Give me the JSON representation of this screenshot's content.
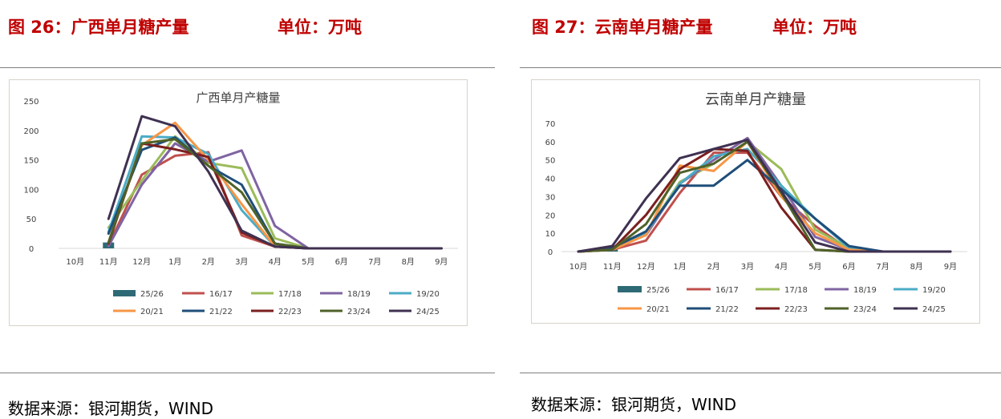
{
  "left": {
    "figure_title": "图 26：广西单月糖产量",
    "unit_label": "单位：万吨",
    "source": "数据来源：银河期货，WIND"
  },
  "right": {
    "figure_title": "图 27：云南单月糖产量",
    "unit_label": "单位：万吨",
    "source": "数据来源：银河期货，WIND"
  },
  "colors": {
    "title_red": "#c00000",
    "s2526": "#2e6a75",
    "s1617": "#c0504d",
    "s1718": "#9bbb59",
    "s1819": "#8064a2",
    "s1920": "#4bacc6",
    "s2021": "#f79646",
    "s2122": "#1f4e79",
    "s2223": "#7b1f1f",
    "s2324": "#4f6228",
    "s2425": "#3f3151"
  },
  "chart_data": [
    {
      "type": "line",
      "title": "广西单月产糖量",
      "categories": [
        "10月",
        "11月",
        "12月",
        "1月",
        "2月",
        "3月",
        "4月",
        "5月",
        "6月",
        "7月",
        "8月",
        "9月"
      ],
      "ylim": [
        0,
        250
      ],
      "yticks": [
        0,
        50,
        100,
        150,
        200,
        250
      ],
      "legend_position": "bottom",
      "series": [
        {
          "name": "25/26",
          "display": "bar",
          "values": [
            null,
            10,
            null,
            null,
            null,
            null,
            null,
            null,
            null,
            null,
            null,
            null
          ]
        },
        {
          "name": "16/17",
          "values": [
            null,
            5,
            125,
            157,
            163,
            22,
            3,
            0,
            0,
            0,
            0,
            0
          ]
        },
        {
          "name": "17/18",
          "values": [
            null,
            35,
            115,
            190,
            145,
            136,
            17,
            0,
            0,
            0,
            0,
            0
          ]
        },
        {
          "name": "18/19",
          "values": [
            null,
            4,
            108,
            178,
            147,
            166,
            38,
            0,
            0,
            0,
            0,
            0
          ]
        },
        {
          "name": "19/20",
          "values": [
            null,
            28,
            190,
            188,
            160,
            65,
            3,
            0,
            0,
            0,
            0,
            0
          ]
        },
        {
          "name": "20/21",
          "values": [
            null,
            10,
            175,
            213,
            150,
            75,
            3,
            0,
            0,
            0,
            0,
            0
          ]
        },
        {
          "name": "21/22",
          "values": [
            null,
            25,
            167,
            188,
            140,
            108,
            8,
            0,
            0,
            0,
            0,
            0
          ]
        },
        {
          "name": "22/23",
          "values": [
            null,
            8,
            178,
            168,
            155,
            27,
            3,
            0,
            0,
            0,
            0,
            0
          ]
        },
        {
          "name": "23/24",
          "values": [
            null,
            10,
            178,
            185,
            140,
            95,
            8,
            0,
            0,
            0,
            0,
            0
          ]
        },
        {
          "name": "24/25",
          "values": [
            null,
            50,
            224,
            207,
            130,
            30,
            3,
            0,
            0,
            0,
            0,
            0
          ]
        }
      ]
    },
    {
      "type": "line",
      "title": "云南单月产糖量",
      "categories": [
        "10月",
        "11月",
        "12月",
        "1月",
        "2月",
        "3月",
        "4月",
        "5月",
        "6月",
        "7月",
        "8月",
        "9月"
      ],
      "ylim": [
        0,
        70
      ],
      "yticks": [
        0,
        10,
        20,
        30,
        40,
        50,
        60,
        70
      ],
      "legend_position": "bottom",
      "series": [
        {
          "name": "25/26",
          "display": "bar",
          "values": [
            null,
            3,
            null,
            null,
            null,
            null,
            null,
            null,
            null,
            null,
            null,
            null
          ]
        },
        {
          "name": "16/17",
          "values": [
            0,
            1,
            6,
            32,
            54,
            54,
            30,
            14,
            1,
            0,
            0,
            0
          ]
        },
        {
          "name": "17/18",
          "values": [
            0,
            2,
            10,
            38,
            48,
            60,
            45,
            12,
            2,
            0,
            0,
            0
          ]
        },
        {
          "name": "18/19",
          "values": [
            0,
            2,
            9,
            37,
            50,
            62,
            36,
            8,
            1,
            0,
            0,
            0
          ]
        },
        {
          "name": "19/20",
          "values": [
            0,
            2,
            10,
            37,
            52,
            56,
            36,
            18,
            2,
            0,
            0,
            0
          ]
        },
        {
          "name": "20/21",
          "values": [
            0,
            1,
            9,
            47,
            44,
            60,
            30,
            10,
            1,
            0,
            0,
            0
          ]
        },
        {
          "name": "21/22",
          "values": [
            0,
            2,
            11,
            36,
            36,
            50,
            34,
            18,
            3,
            0,
            0,
            0
          ]
        },
        {
          "name": "22/23",
          "values": [
            0,
            1,
            20,
            45,
            56,
            55,
            24,
            1,
            0,
            0,
            0,
            0
          ]
        },
        {
          "name": "23/24",
          "values": [
            0,
            1,
            15,
            43,
            48,
            60,
            32,
            1,
            0,
            0,
            0,
            0
          ]
        },
        {
          "name": "24/25",
          "values": [
            0,
            3,
            29,
            51,
            56,
            61,
            33,
            5,
            0,
            0,
            0,
            0
          ]
        }
      ]
    }
  ]
}
